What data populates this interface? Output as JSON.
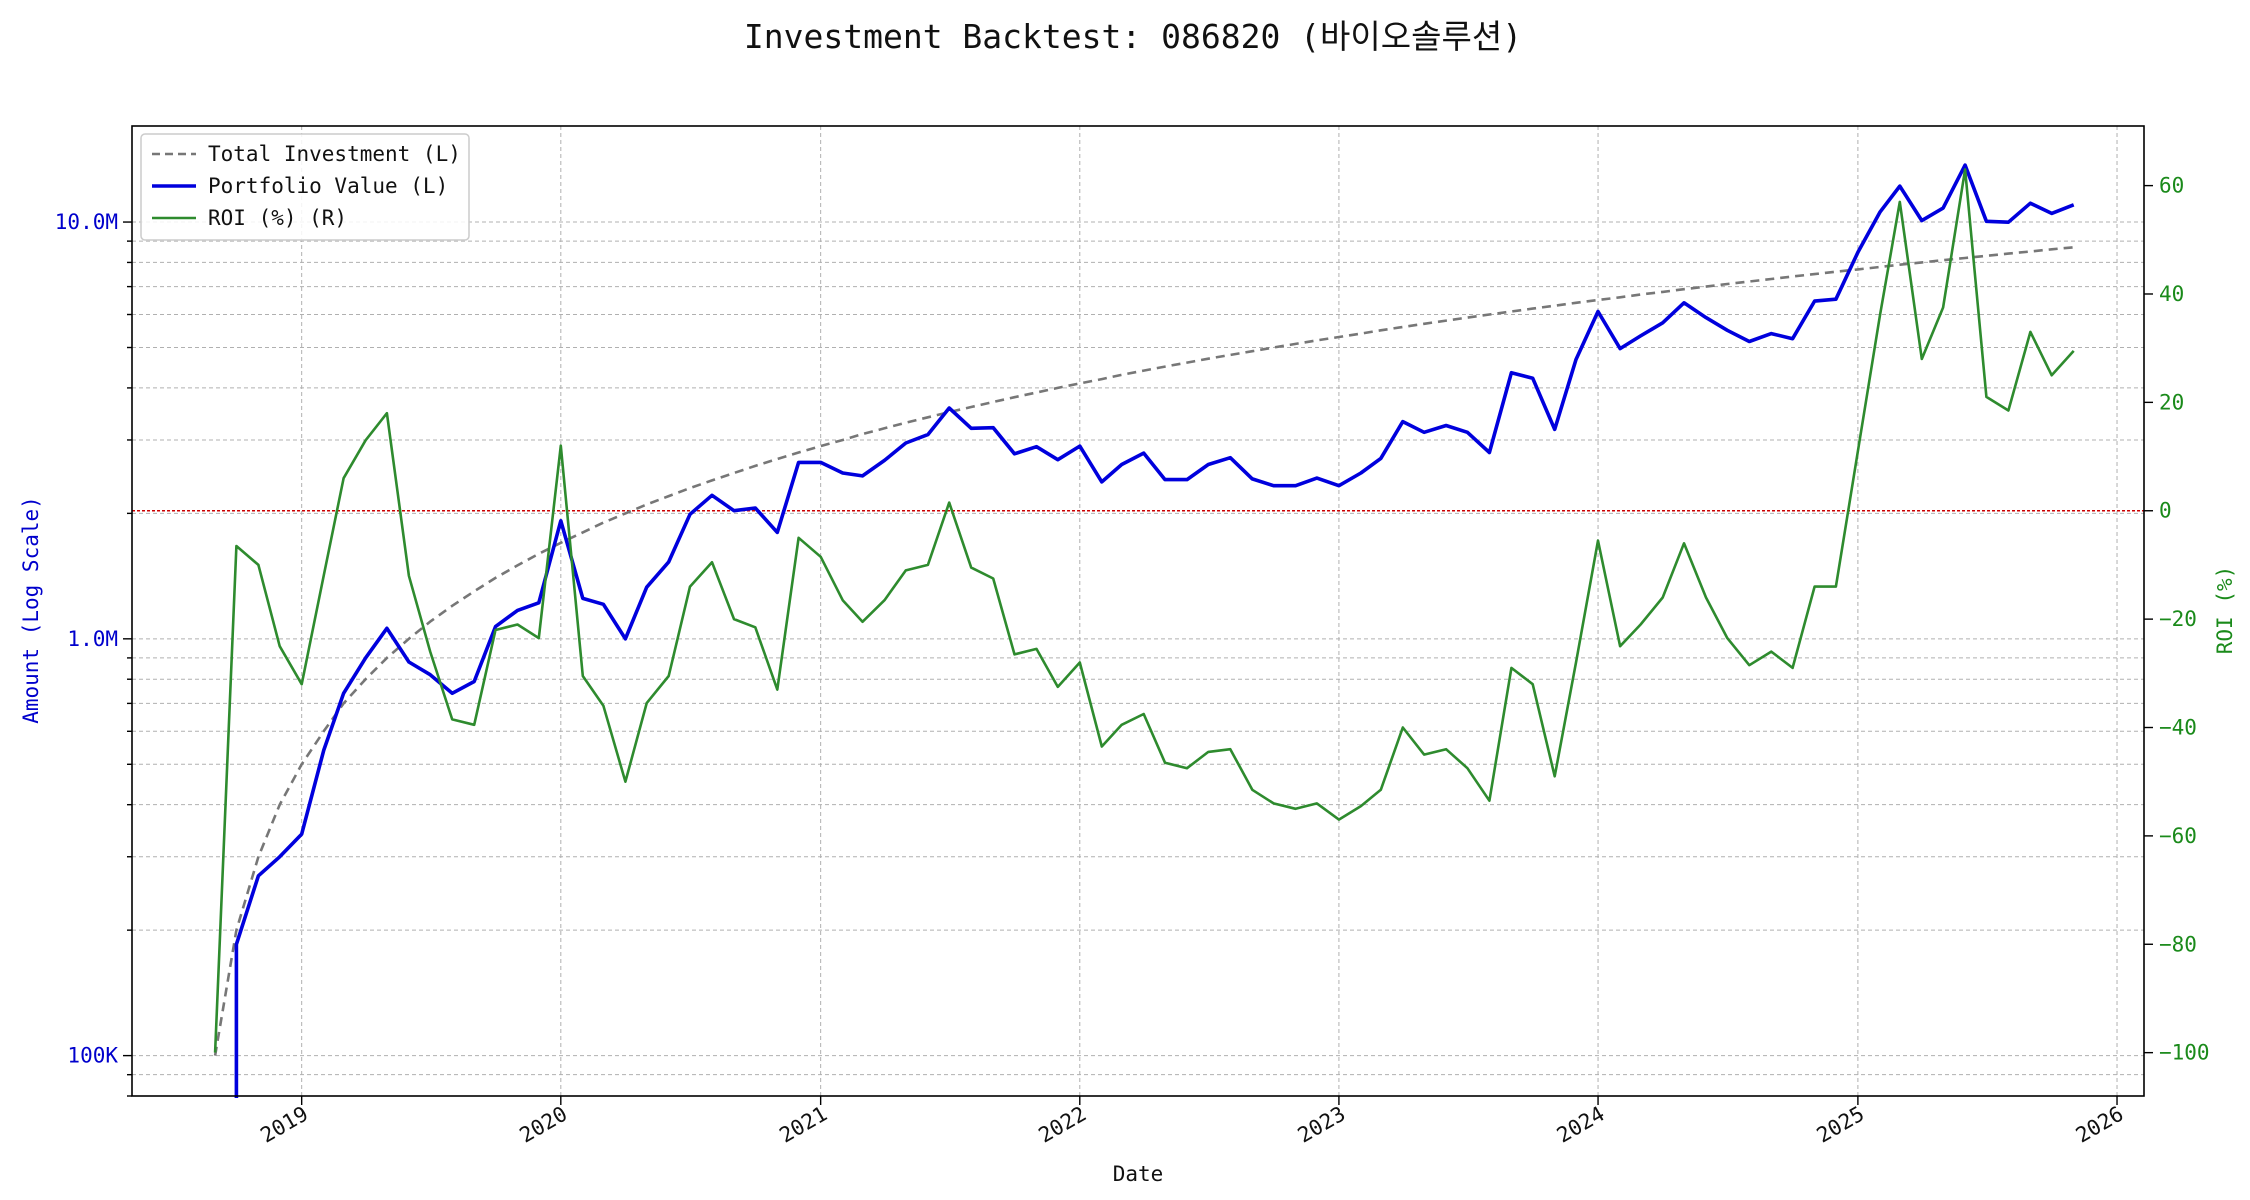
{
  "colors": {
    "left_axis": "#0000cc",
    "right_axis": "#1a8a1a",
    "investment": "#777777",
    "portfolio": "#0000dd",
    "roi": "#2e8b2e",
    "zero_line": "#cc0000",
    "grid": "#b0b0b0"
  },
  "chart_data": {
    "type": "line",
    "title": "Investment Backtest: 086820 (바이오솔루션)",
    "xlabel": "Date",
    "ylabel_left": "Amount (Log Scale)",
    "ylabel_right": "ROI (%)",
    "left_scale": "log",
    "left_ylim": [
      80000,
      17000000
    ],
    "left_ticks": [
      {
        "value": 100000,
        "label": "100K"
      },
      {
        "value": 1000000,
        "label": "1.0M"
      },
      {
        "value": 10000000,
        "label": "10.0M"
      }
    ],
    "right_ylim": [
      -108,
      71
    ],
    "right_ticks": [
      -100,
      -80,
      -60,
      -40,
      -20,
      0,
      20,
      40,
      60
    ],
    "x_ticks": [
      "2019",
      "2020",
      "2021",
      "2022",
      "2023",
      "2024",
      "2025",
      "2026"
    ],
    "xlim": [
      "2018-05-07",
      "2026-02-08"
    ],
    "grid": true,
    "legend_position": "top-left",
    "reference_line": {
      "axis": "right",
      "value": 0
    },
    "dates": [
      "2018-09-01",
      "2018-10-01",
      "2018-11-01",
      "2018-12-01",
      "2019-01-01",
      "2019-02-01",
      "2019-03-01",
      "2019-04-01",
      "2019-05-01",
      "2019-06-01",
      "2019-07-01",
      "2019-08-01",
      "2019-09-01",
      "2019-10-01",
      "2019-11-01",
      "2019-12-01",
      "2020-01-01",
      "2020-02-01",
      "2020-03-01",
      "2020-04-01",
      "2020-05-01",
      "2020-06-01",
      "2020-07-01",
      "2020-08-01",
      "2020-09-01",
      "2020-10-01",
      "2020-11-01",
      "2020-12-01",
      "2021-01-01",
      "2021-02-01",
      "2021-03-01",
      "2021-04-01",
      "2021-05-01",
      "2021-06-01",
      "2021-07-01",
      "2021-08-01",
      "2021-09-01",
      "2021-10-01",
      "2021-11-01",
      "2021-12-01",
      "2022-01-01",
      "2022-02-01",
      "2022-03-01",
      "2022-04-01",
      "2022-05-01",
      "2022-06-01",
      "2022-07-01",
      "2022-08-01",
      "2022-09-01",
      "2022-10-01",
      "2022-11-01",
      "2022-12-01",
      "2023-01-01",
      "2023-02-01",
      "2023-03-01",
      "2023-04-01",
      "2023-05-01",
      "2023-06-01",
      "2023-07-01",
      "2023-08-01",
      "2023-09-01",
      "2023-10-01",
      "2023-11-01",
      "2023-12-01",
      "2024-01-01",
      "2024-02-01",
      "2024-03-01",
      "2024-04-01",
      "2024-05-01",
      "2024-06-01",
      "2024-07-01",
      "2024-08-01",
      "2024-09-01",
      "2024-10-01",
      "2024-11-01",
      "2024-12-01",
      "2025-01-01",
      "2025-02-01",
      "2025-03-01",
      "2025-04-01",
      "2025-05-01",
      "2025-06-01",
      "2025-07-01",
      "2025-08-01",
      "2025-09-01",
      "2025-10-01",
      "2025-11-01"
    ],
    "series": [
      {
        "name": "Total Investment (L)",
        "axis": "left",
        "style": "dashed",
        "values": [
          100000,
          200000,
          300000,
          400000,
          500000,
          600000,
          700000,
          800000,
          900000,
          1000000,
          1100000,
          1200000,
          1300000,
          1400000,
          1500000,
          1600000,
          1700000,
          1800000,
          1900000,
          2000000,
          2100000,
          2200000,
          2300000,
          2400000,
          2500000,
          2600000,
          2700000,
          2800000,
          2900000,
          3000000,
          3100000,
          3200000,
          3300000,
          3400000,
          3500000,
          3600000,
          3700000,
          3800000,
          3900000,
          4000000,
          4100000,
          4200000,
          4300000,
          4400000,
          4500000,
          4600000,
          4700000,
          4800000,
          4900000,
          5000000,
          5100000,
          5200000,
          5300000,
          5400000,
          5500000,
          5600000,
          5700000,
          5800000,
          5900000,
          6000000,
          6100000,
          6200000,
          6300000,
          6400000,
          6500000,
          6600000,
          6700000,
          6800000,
          6900000,
          7000000,
          7100000,
          7200000,
          7300000,
          7400000,
          7500000,
          7600000,
          7700000,
          7800000,
          7900000,
          8000000,
          8100000,
          8200000,
          8300000,
          8400000,
          8500000,
          8600000,
          8700000
        ]
      },
      {
        "name": "Portfolio Value (L)",
        "axis": "left",
        "style": "solid",
        "values": [
          null,
          185000,
          270000,
          300000,
          340000,
          540000,
          740000,
          900000,
          1060000,
          880000,
          820000,
          740000,
          790000,
          1070000,
          1170000,
          1220000,
          1920000,
          1250000,
          1210000,
          1000000,
          1330000,
          1530000,
          1990000,
          2210000,
          2030000,
          2060000,
          1800000,
          2650000,
          2650000,
          2500000,
          2460000,
          2680000,
          2950000,
          3090000,
          3580000,
          3200000,
          3210000,
          2780000,
          2890000,
          2690000,
          2900000,
          2380000,
          2620000,
          2790000,
          2410000,
          2410000,
          2620000,
          2720000,
          2420000,
          2330000,
          2330000,
          2430000,
          2330000,
          2500000,
          2710000,
          3320000,
          3130000,
          3250000,
          3130000,
          2800000,
          4350000,
          4220000,
          3180000,
          4680000,
          6100000,
          4970000,
          5330000,
          5730000,
          6400000,
          5900000,
          5500000,
          5170000,
          5400000,
          5250000,
          6460000,
          6530000,
          8460000,
          10560000,
          12200000,
          10080000,
          10800000,
          13700000,
          10040000,
          9990000,
          11100000,
          10490000,
          11000000
        ]
      },
      {
        "name": "ROI (%) (R)",
        "axis": "right",
        "style": "solid",
        "values": [
          -100,
          -6.5,
          -10,
          -25,
          -32,
          -12,
          6,
          13,
          18,
          -12,
          -26,
          -38.5,
          -39.5,
          -22,
          -21,
          -23.5,
          12,
          -30.5,
          -36,
          -50,
          -35.5,
          -30.5,
          -14,
          -9.5,
          -20,
          -21.5,
          -33,
          -5,
          -8.5,
          -16.5,
          -20.5,
          -16.5,
          -11,
          -10,
          1.5,
          -10.5,
          -12.5,
          -26.5,
          -25.5,
          -32.5,
          -28,
          -43.5,
          -39.5,
          -37.5,
          -46.5,
          -47.5,
          -44.5,
          -44,
          -51.5,
          -54,
          -55,
          -54,
          -57,
          -54.5,
          -51.5,
          -40,
          -45,
          -44,
          -47.5,
          -53.5,
          -29,
          -32,
          -49,
          -28,
          -5.5,
          -25,
          -21,
          -16,
          -6,
          -16,
          -23.5,
          -28.5,
          -26,
          -29,
          -14,
          -14,
          11,
          36,
          57,
          28,
          37.5,
          63,
          21,
          18.5,
          33,
          25,
          29.5
        ]
      }
    ]
  }
}
